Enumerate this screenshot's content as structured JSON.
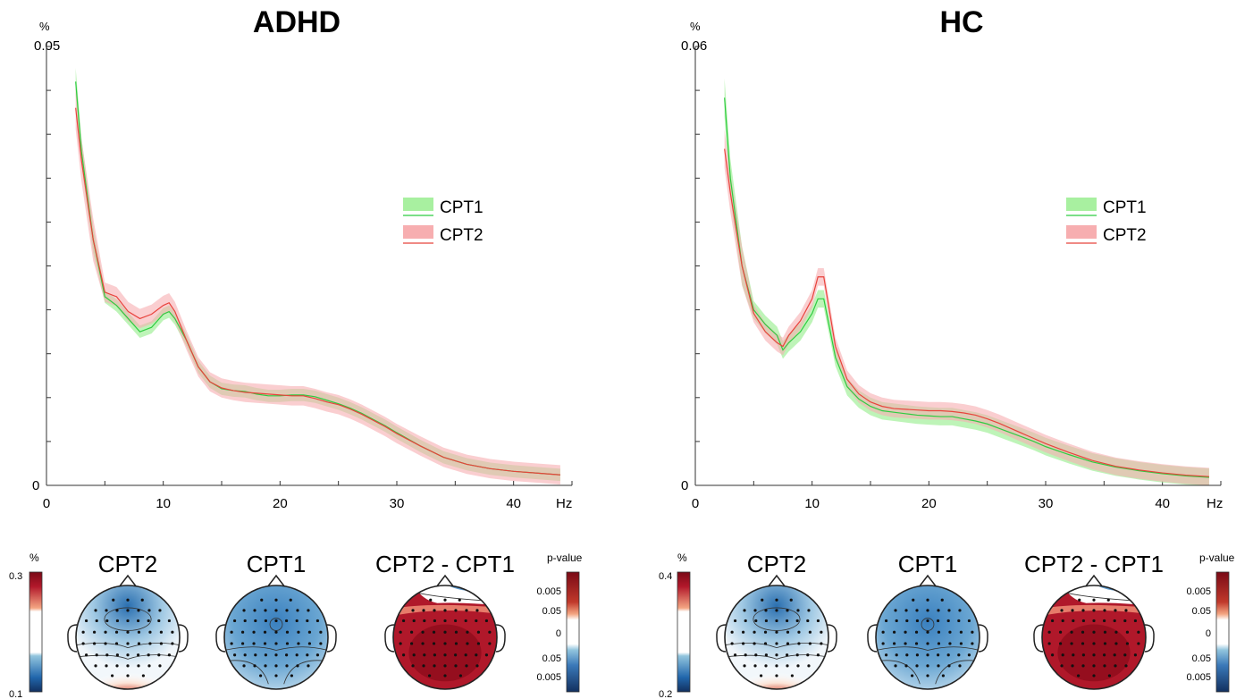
{
  "colors": {
    "cpt1": "#2ecc40",
    "cpt2": "#e8433c",
    "cpt1_band": "#a8f0a0",
    "cpt2_band": "#f7aeb0"
  },
  "chart_data": [
    {
      "type": "line",
      "title": "ADHD",
      "ylabel": "%",
      "xlabel": "Hz",
      "xlim": [
        0,
        45
      ],
      "ylim": [
        0,
        0.05
      ],
      "xticks": [
        "0",
        "10",
        "20",
        "30",
        "40"
      ],
      "ytick_min": "0",
      "ytick_max": "0.05",
      "legend": {
        "position": "right",
        "entries": [
          "CPT1",
          "CPT2"
        ]
      },
      "x": [
        2.5,
        3,
        4,
        5,
        6,
        7,
        8,
        9,
        10,
        10.5,
        11,
        12,
        13,
        14,
        15,
        16,
        17,
        18,
        19,
        20,
        21,
        22,
        23,
        24,
        25,
        26,
        27,
        28,
        29,
        30,
        32,
        34,
        36,
        38,
        40,
        42,
        44
      ],
      "series": [
        {
          "name": "CPT1",
          "values": [
            0.046,
            0.038,
            0.028,
            0.0215,
            0.0205,
            0.019,
            0.0175,
            0.018,
            0.0195,
            0.0198,
            0.019,
            0.0165,
            0.0135,
            0.0118,
            0.011,
            0.0108,
            0.0107,
            0.0104,
            0.0102,
            0.0102,
            0.0103,
            0.0103,
            0.0101,
            0.0097,
            0.0093,
            0.0088,
            0.0082,
            0.0075,
            0.0068,
            0.006,
            0.0045,
            0.0032,
            0.0024,
            0.0019,
            0.0016,
            0.0014,
            0.0012
          ],
          "band": 0.0007
        },
        {
          "name": "CPT2",
          "values": [
            0.043,
            0.037,
            0.028,
            0.022,
            0.0215,
            0.0198,
            0.019,
            0.0195,
            0.0205,
            0.0208,
            0.0198,
            0.0165,
            0.0135,
            0.0118,
            0.0111,
            0.0108,
            0.0106,
            0.0105,
            0.0104,
            0.0103,
            0.0102,
            0.0102,
            0.0099,
            0.0095,
            0.0092,
            0.0087,
            0.0081,
            0.0074,
            0.0067,
            0.0059,
            0.0045,
            0.0032,
            0.0024,
            0.0019,
            0.0016,
            0.0014,
            0.0012
          ],
          "band": 0.0011
        }
      ]
    },
    {
      "type": "line",
      "title": "HC",
      "ylabel": "%",
      "xlabel": "Hz",
      "xlim": [
        0,
        45
      ],
      "ylim": [
        0,
        0.06
      ],
      "xticks": [
        "0",
        "10",
        "20",
        "30",
        "40"
      ],
      "ytick_min": "0",
      "ytick_max": "0.06",
      "legend": {
        "position": "right",
        "entries": [
          "CPT1",
          "CPT2"
        ]
      },
      "x": [
        2.5,
        3,
        4,
        5,
        6,
        7,
        7.5,
        8,
        9,
        10,
        10.5,
        11,
        12,
        13,
        14,
        15,
        16,
        17,
        18,
        19,
        20,
        21,
        22,
        23,
        24,
        25,
        26,
        27,
        28,
        29,
        30,
        32,
        34,
        36,
        38,
        40,
        42,
        44
      ],
      "series": [
        {
          "name": "CPT1",
          "values": [
            0.053,
            0.042,
            0.03,
            0.024,
            0.022,
            0.0205,
            0.0185,
            0.0195,
            0.021,
            0.0235,
            0.0255,
            0.0255,
            0.0175,
            0.0135,
            0.0118,
            0.0108,
            0.0102,
            0.01,
            0.0098,
            0.0096,
            0.0095,
            0.0094,
            0.0094,
            0.0091,
            0.0088,
            0.0084,
            0.0078,
            0.0072,
            0.0066,
            0.006,
            0.0053,
            0.0042,
            0.0032,
            0.0025,
            0.002,
            0.0016,
            0.0013,
            0.0011
          ],
          "band": 0.0012
        },
        {
          "name": "CPT2",
          "values": [
            0.046,
            0.04,
            0.03,
            0.0235,
            0.021,
            0.0195,
            0.019,
            0.0205,
            0.0225,
            0.0255,
            0.0285,
            0.0285,
            0.019,
            0.0145,
            0.0125,
            0.0114,
            0.0108,
            0.0105,
            0.0104,
            0.0103,
            0.0102,
            0.0102,
            0.0101,
            0.0099,
            0.0096,
            0.0091,
            0.0085,
            0.0078,
            0.0071,
            0.0064,
            0.0057,
            0.0045,
            0.0034,
            0.0026,
            0.0021,
            0.0017,
            0.0014,
            0.0012
          ],
          "band": 0.0012
        }
      ]
    }
  ],
  "topomaps": {
    "adhd": {
      "unit": "%",
      "cbar_max": "0.3",
      "cbar_min": "0.1",
      "maps": [
        {
          "title": "CPT2",
          "pattern": "posterior-red"
        },
        {
          "title": "CPT1",
          "pattern": "mostly-blue"
        },
        {
          "title": "CPT2 - CPT1",
          "pattern": "all-red"
        }
      ],
      "pvalue": {
        "title": "p-value",
        "ticks": [
          "0.005",
          "0.05",
          "0",
          "0.05",
          "0.005"
        ]
      }
    },
    "hc": {
      "unit": "%",
      "cbar_max": "0.4",
      "cbar_min": "0.2",
      "maps": [
        {
          "title": "CPT2",
          "pattern": "posterior-red"
        },
        {
          "title": "CPT1",
          "pattern": "mostly-blue"
        },
        {
          "title": "CPT2 - CPT1",
          "pattern": "all-red"
        }
      ],
      "pvalue": {
        "title": "p-value",
        "ticks": [
          "0.005",
          "0.05",
          "0",
          "0.05",
          "0.005"
        ]
      }
    }
  }
}
